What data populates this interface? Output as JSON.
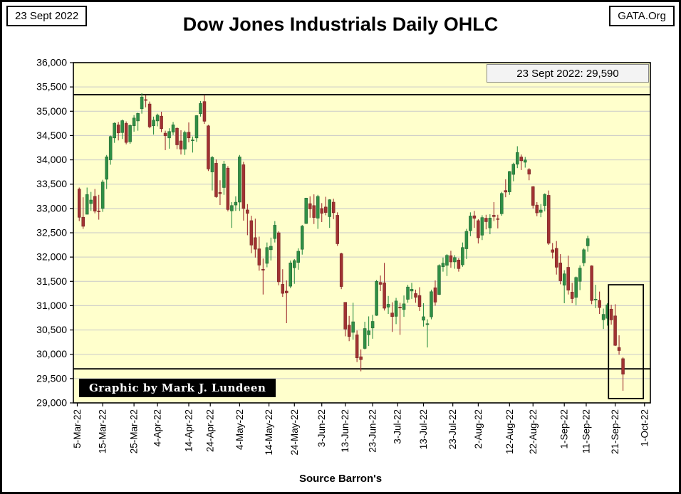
{
  "header": {
    "date": "23 Sept 2022",
    "title": "Dow Jones Industrials Daily OHLC",
    "site": "GATA.Org"
  },
  "chart_data": {
    "type": "candlestick-ohlc",
    "title": "Dow Jones Industrials Daily OHLC",
    "annotation": "23 Sept 2022: 29,590",
    "watermark": "Graphic by Mark J. Lundeen",
    "source": "Source Barron's",
    "ylim": [
      29000,
      36000
    ],
    "y_tick_step": 500,
    "x_domain": [
      -1.5,
      146
    ],
    "grid": true,
    "legend": "none",
    "colors": {
      "bg": "#ffffcc",
      "grid": "#c9c9c9",
      "up": "#2f8f45",
      "up_edge": "#1d5c2c",
      "down": "#a03232",
      "down_edge": "#6e1f1f",
      "frame": "#000000",
      "annotation_bg": "#f3f3f3"
    },
    "y_ticks": [
      {
        "v": 36000,
        "label": "36,000"
      },
      {
        "v": 35500,
        "label": "35,500"
      },
      {
        "v": 35000,
        "label": "35,000"
      },
      {
        "v": 34500,
        "label": "34,500"
      },
      {
        "v": 34000,
        "label": "34,000"
      },
      {
        "v": 33500,
        "label": "33,500"
      },
      {
        "v": 33000,
        "label": "33,000"
      },
      {
        "v": 32500,
        "label": "32,500"
      },
      {
        "v": 32000,
        "label": "32,000"
      },
      {
        "v": 31500,
        "label": "31,500"
      },
      {
        "v": 31000,
        "label": "31,000"
      },
      {
        "v": 30500,
        "label": "30,500"
      },
      {
        "v": 30000,
        "label": "30,000"
      },
      {
        "v": 29500,
        "label": "29,500"
      },
      {
        "v": 29000,
        "label": "29,000"
      }
    ],
    "x_ticks": [
      {
        "label": "5-Mar-22",
        "i": -0.5
      },
      {
        "label": "15-Mar-22",
        "i": 6
      },
      {
        "label": "25-Mar-22",
        "i": 14
      },
      {
        "label": "4-Apr-22",
        "i": 20
      },
      {
        "label": "14-Apr-22",
        "i": 28
      },
      {
        "label": "24-Apr-22",
        "i": 33.5
      },
      {
        "label": "4-May-22",
        "i": 41
      },
      {
        "label": "14-May-22",
        "i": 48.5
      },
      {
        "label": "24-May-22",
        "i": 55
      },
      {
        "label": "3-Jun-22",
        "i": 62
      },
      {
        "label": "13-Jun-22",
        "i": 68
      },
      {
        "label": "23-Jun-22",
        "i": 75
      },
      {
        "label": "3-Jul-22",
        "i": 81.4
      },
      {
        "label": "13-Jul-22",
        "i": 88
      },
      {
        "label": "23-Jul-22",
        "i": 95.5
      },
      {
        "label": "2-Aug-22",
        "i": 102
      },
      {
        "label": "12-Aug-22",
        "i": 110
      },
      {
        "label": "22-Aug-22",
        "i": 116
      },
      {
        "label": "1-Sep-22",
        "i": 124
      },
      {
        "label": "11-Sep-22",
        "i": 129.6
      },
      {
        "label": "21-Sep-22",
        "i": 137
      },
      {
        "label": "1-Oct-22",
        "i": 144.5
      }
    ],
    "hlines": [
      35340,
      29700
    ],
    "highlight_box": {
      "i1": 135.3,
      "i2": 144.2,
      "v1": 29090,
      "v2": 31430
    },
    "ohlc": [
      [
        "7-Mar-22",
        33400,
        33430,
        32740,
        32817
      ],
      [
        "8-Mar-22",
        32820,
        33230,
        32580,
        32632
      ],
      [
        "9-Mar-22",
        32880,
        33430,
        32880,
        33286
      ],
      [
        "10-Mar-22",
        33100,
        33340,
        32950,
        33174
      ],
      [
        "11-Mar-22",
        33250,
        33400,
        32900,
        32944
      ],
      [
        "14-Mar-22",
        32950,
        33280,
        32770,
        32945
      ],
      [
        "15-Mar-22",
        33000,
        33590,
        32930,
        33544
      ],
      [
        "16-Mar-22",
        33600,
        34100,
        33400,
        34063
      ],
      [
        "17-Mar-22",
        34000,
        34500,
        33900,
        34481
      ],
      [
        "18-Mar-22",
        34450,
        34770,
        34350,
        34755
      ],
      [
        "21-Mar-22",
        34720,
        34780,
        34400,
        34553
      ],
      [
        "22-Mar-22",
        34560,
        34830,
        34430,
        34807
      ],
      [
        "23-Mar-22",
        34750,
        34790,
        34320,
        34358
      ],
      [
        "24-Mar-22",
        34370,
        34730,
        34330,
        34708
      ],
      [
        "25-Mar-22",
        34700,
        34920,
        34580,
        34861
      ],
      [
        "28-Mar-22",
        34800,
        34970,
        34600,
        34956
      ],
      [
        "29-Mar-22",
        35050,
        35372,
        34950,
        35294
      ],
      [
        "30-Mar-22",
        35240,
        35330,
        35080,
        35228
      ],
      [
        "31-Mar-22",
        35150,
        35200,
        34650,
        34678
      ],
      [
        "1-Apr-22",
        34700,
        34890,
        34520,
        34818
      ],
      [
        "4-Apr-22",
        34800,
        34950,
        34690,
        34922
      ],
      [
        "5-Apr-22",
        34900,
        34990,
        34570,
        34641
      ],
      [
        "6-Apr-22",
        34550,
        34600,
        34200,
        34497
      ],
      [
        "7-Apr-22",
        34450,
        34650,
        34230,
        34584
      ],
      [
        "8-Apr-22",
        34570,
        34780,
        34510,
        34721
      ],
      [
        "11-Apr-22",
        34650,
        34670,
        34220,
        34308
      ],
      [
        "12-Apr-22",
        34390,
        34610,
        34110,
        34220
      ],
      [
        "13-Apr-22",
        34220,
        34600,
        34100,
        34565
      ],
      [
        "14-Apr-22",
        34570,
        34770,
        34360,
        34451
      ],
      [
        "18-Apr-22",
        34400,
        34480,
        34150,
        34411
      ],
      [
        "19-Apr-22",
        34450,
        34920,
        34370,
        34911
      ],
      [
        "20-Apr-22",
        34950,
        35210,
        34890,
        35160
      ],
      [
        "21-Apr-22",
        35200,
        35330,
        34740,
        34793
      ],
      [
        "22-Apr-22",
        34700,
        34720,
        33770,
        33811
      ],
      [
        "25-Apr-22",
        33750,
        34080,
        33370,
        34049
      ],
      [
        "26-Apr-22",
        33930,
        34010,
        33220,
        33240
      ],
      [
        "27-Apr-22",
        33330,
        33580,
        33070,
        33302
      ],
      [
        "28-Apr-22",
        33430,
        33980,
        33280,
        33916
      ],
      [
        "29-Apr-22",
        33830,
        33870,
        32940,
        32977
      ],
      [
        "2-May-22",
        32950,
        33130,
        32600,
        33061
      ],
      [
        "3-May-22",
        33070,
        33250,
        32950,
        33129
      ],
      [
        "4-May-22",
        33130,
        34100,
        32950,
        34061
      ],
      [
        "5-May-22",
        33900,
        33960,
        32750,
        32998
      ],
      [
        "6-May-22",
        32970,
        33090,
        32450,
        32899
      ],
      [
        "9-May-22",
        32750,
        32850,
        32080,
        32246
      ],
      [
        "10-May-22",
        32400,
        32790,
        31990,
        32161
      ],
      [
        "11-May-22",
        32170,
        32420,
        31720,
        31834
      ],
      [
        "12-May-22",
        31750,
        31970,
        31230,
        31730
      ],
      [
        "13-May-22",
        31870,
        32300,
        31790,
        32197
      ],
      [
        "16-May-22",
        32150,
        32400,
        31930,
        32223
      ],
      [
        "17-May-22",
        32380,
        32740,
        32300,
        32655
      ],
      [
        "18-May-22",
        32500,
        32530,
        31420,
        31490
      ],
      [
        "19-May-22",
        31440,
        31750,
        31180,
        31253
      ],
      [
        "20-May-22",
        31300,
        31520,
        30640,
        31262
      ],
      [
        "23-May-22",
        31400,
        31930,
        31360,
        31881
      ],
      [
        "24-May-22",
        31780,
        31960,
        31450,
        31929
      ],
      [
        "25-May-22",
        31890,
        32180,
        31740,
        32120
      ],
      [
        "26-May-22",
        32160,
        32660,
        32050,
        32637
      ],
      [
        "27-May-22",
        32690,
        33220,
        32680,
        33213
      ],
      [
        "31-May-22",
        33100,
        33250,
        32810,
        32990
      ],
      [
        "1-Jun-22",
        33060,
        33290,
        32680,
        32813
      ],
      [
        "2-Jun-22",
        32800,
        33280,
        32580,
        33248
      ],
      [
        "3-Jun-22",
        33000,
        33110,
        32720,
        32900
      ],
      [
        "6-Jun-22",
        33030,
        33240,
        32860,
        32916
      ],
      [
        "7-Jun-22",
        32830,
        33190,
        32600,
        33180
      ],
      [
        "8-Jun-22",
        33130,
        33200,
        32780,
        32911
      ],
      [
        "9-Jun-22",
        32860,
        32920,
        32230,
        32273
      ],
      [
        "10-Jun-22",
        32070,
        32090,
        31340,
        31393
      ],
      [
        "13-Jun-22",
        31070,
        31070,
        30370,
        30517
      ],
      [
        "14-Jun-22",
        30600,
        30790,
        30270,
        30365
      ],
      [
        "15-Jun-22",
        30450,
        31060,
        30300,
        30669
      ],
      [
        "16-Jun-22",
        30400,
        30490,
        29840,
        29927
      ],
      [
        "17-Jun-22",
        29950,
        30100,
        29650,
        29889
      ],
      [
        "21-Jun-22",
        30120,
        30670,
        30100,
        30530
      ],
      [
        "22-Jun-22",
        30400,
        30780,
        30170,
        30483
      ],
      [
        "23-Jun-22",
        30540,
        30810,
        30320,
        30677
      ],
      [
        "24-Jun-22",
        30800,
        31530,
        30790,
        31501
      ],
      [
        "27-Jun-22",
        31480,
        31620,
        31300,
        31438
      ],
      [
        "28-Jun-22",
        31470,
        31880,
        30900,
        30947
      ],
      [
        "29-Jun-22",
        30970,
        31200,
        30830,
        31029
      ],
      [
        "30-Jun-22",
        30850,
        31070,
        30460,
        30775
      ],
      [
        "1-Jul-22",
        30780,
        31160,
        30620,
        31097
      ],
      [
        "5-Jul-22",
        30970,
        31060,
        30400,
        30968
      ],
      [
        "6-Jul-22",
        30920,
        31210,
        30770,
        31038
      ],
      [
        "7-Jul-22",
        31130,
        31430,
        31060,
        31385
      ],
      [
        "8-Jul-22",
        31300,
        31470,
        31140,
        31338
      ],
      [
        "11-Jul-22",
        31250,
        31330,
        31060,
        31173
      ],
      [
        "12-Jul-22",
        31210,
        31380,
        30890,
        30981
      ],
      [
        "13-Jul-22",
        30700,
        31050,
        30570,
        30773
      ],
      [
        "14-Jul-22",
        30610,
        30720,
        30140,
        30630
      ],
      [
        "15-Jul-22",
        30770,
        31330,
        30720,
        31288
      ],
      [
        "18-Jul-22",
        31370,
        31520,
        31000,
        31072
      ],
      [
        "19-Jul-22",
        31230,
        31850,
        31220,
        31827
      ],
      [
        "20-Jul-22",
        31800,
        31990,
        31700,
        31875
      ],
      [
        "21-Jul-22",
        31830,
        32060,
        31610,
        32036
      ],
      [
        "22-Jul-22",
        32030,
        32130,
        31780,
        31899
      ],
      [
        "25-Jul-22",
        31900,
        32040,
        31760,
        31990
      ],
      [
        "26-Jul-22",
        31940,
        31980,
        31700,
        31762
      ],
      [
        "27-Jul-22",
        31840,
        32300,
        31800,
        32197
      ],
      [
        "28-Jul-22",
        32170,
        32580,
        31960,
        32530
      ],
      [
        "29-Jul-22",
        32540,
        32920,
        32430,
        32845
      ],
      [
        "1-Aug-22",
        32850,
        32950,
        32600,
        32798
      ],
      [
        "2-Aug-22",
        32750,
        32780,
        32280,
        32396
      ],
      [
        "3-Aug-22",
        32450,
        32860,
        32350,
        32813
      ],
      [
        "4-Aug-22",
        32800,
        32870,
        32570,
        32727
      ],
      [
        "5-Aug-22",
        32600,
        32880,
        32470,
        32803
      ],
      [
        "8-Aug-22",
        32860,
        33130,
        32740,
        32832
      ],
      [
        "9-Aug-22",
        32790,
        32870,
        32590,
        32774
      ],
      [
        "10-Aug-22",
        32890,
        33340,
        32850,
        33309
      ],
      [
        "11-Aug-22",
        33370,
        33600,
        33230,
        33336
      ],
      [
        "12-Aug-22",
        33340,
        33770,
        33280,
        33761
      ],
      [
        "15-Aug-22",
        33700,
        33940,
        33560,
        33912
      ],
      [
        "16-Aug-22",
        33910,
        34280,
        33830,
        34152
      ],
      [
        "17-Aug-22",
        34060,
        34110,
        33790,
        33980
      ],
      [
        "18-Aug-22",
        33950,
        34060,
        33840,
        33999
      ],
      [
        "19-Aug-22",
        33800,
        33830,
        33580,
        33706
      ],
      [
        "22-Aug-22",
        33450,
        33460,
        33000,
        33063
      ],
      [
        "23-Aug-22",
        33070,
        33130,
        32840,
        32909
      ],
      [
        "24-Aug-22",
        32920,
        33090,
        32820,
        32969
      ],
      [
        "25-Aug-22",
        33060,
        33310,
        32940,
        33291
      ],
      [
        "26-Aug-22",
        33270,
        33370,
        32250,
        32283
      ],
      [
        "29-Aug-22",
        32150,
        32290,
        31970,
        32098
      ],
      [
        "30-Aug-22",
        32180,
        32330,
        31640,
        31790
      ],
      [
        "31-Aug-22",
        31880,
        32060,
        31440,
        31510
      ],
      [
        "1-Sep-22",
        31420,
        31730,
        31050,
        31656
      ],
      [
        "2-Sep-22",
        31790,
        32030,
        31230,
        31318
      ],
      [
        "6-Sep-22",
        31280,
        31470,
        31050,
        31145
      ],
      [
        "7-Sep-22",
        31170,
        31600,
        31010,
        31581
      ],
      [
        "8-Sep-22",
        31500,
        31830,
        31320,
        31774
      ],
      [
        "9-Sep-22",
        31880,
        32180,
        31810,
        32151
      ],
      [
        "12-Sep-22",
        32230,
        32440,
        32110,
        32381
      ],
      [
        "13-Sep-22",
        31820,
        31830,
        31030,
        31104
      ],
      [
        "14-Sep-22",
        31120,
        31430,
        30950,
        31135
      ],
      [
        "15-Sep-22",
        31110,
        31290,
        30830,
        30961
      ],
      [
        "16-Sep-22",
        30710,
        30940,
        30520,
        30822
      ],
      [
        "19-Sep-22",
        30740,
        31050,
        30590,
        31019
      ],
      [
        "20-Sep-22",
        30930,
        31020,
        30610,
        30706
      ],
      [
        "21-Sep-22",
        30790,
        31030,
        30170,
        30183
      ],
      [
        "22-Sep-22",
        30140,
        30390,
        29990,
        30076
      ],
      [
        "23-Sep-22",
        29910,
        29940,
        29250,
        29590
      ]
    ]
  }
}
